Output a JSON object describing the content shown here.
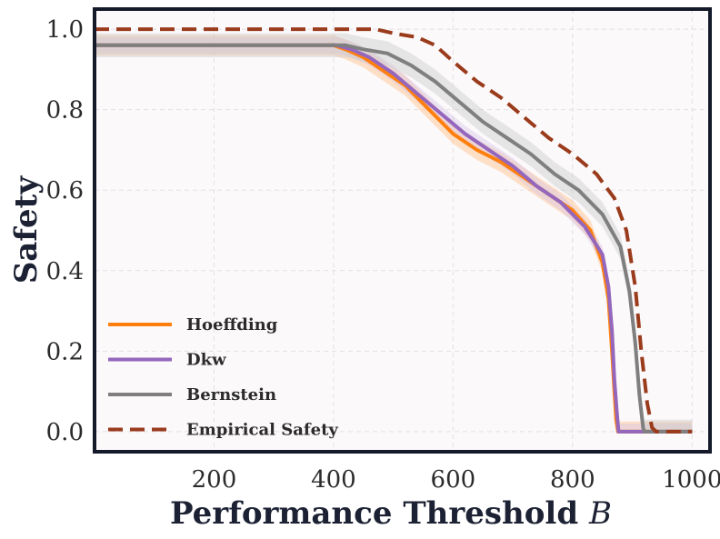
{
  "chart_data": {
    "type": "line",
    "title": "",
    "xlabel": "Performance Threshold",
    "xlabel_var": "B",
    "ylabel": "Safety",
    "xlim": [
      0,
      1030
    ],
    "ylim": [
      -0.05,
      1.05
    ],
    "x_ticks": [
      200,
      400,
      600,
      800,
      1000
    ],
    "x_tick_labels": [
      "200",
      "400",
      "600",
      "800",
      "1000"
    ],
    "y_ticks": [
      0.0,
      0.2,
      0.4,
      0.6,
      0.8,
      1.0
    ],
    "y_tick_labels": [
      "0.0",
      "0.2",
      "0.4",
      "0.6",
      "0.8",
      "1.0"
    ],
    "grid": true,
    "legend_position": "lower-left",
    "series": [
      {
        "name": "Hoeffding",
        "color": "#ff7f0e",
        "style": "solid",
        "band_color": "#ffbf86",
        "x": [
          0,
          400,
          420,
          450,
          480,
          520,
          560,
          600,
          640,
          680,
          720,
          760,
          800,
          830,
          850,
          860,
          866,
          870,
          873,
          876,
          880,
          1000
        ],
        "y": [
          0.96,
          0.96,
          0.95,
          0.93,
          0.9,
          0.86,
          0.8,
          0.74,
          0.7,
          0.67,
          0.63,
          0.59,
          0.55,
          0.5,
          0.42,
          0.33,
          0.2,
          0.1,
          0.03,
          0.0,
          0.0,
          0.0
        ],
        "band": 0.025
      },
      {
        "name": "Dkw",
        "color": "#9467bd",
        "style": "solid",
        "band_color": "#d7c6e6",
        "x": [
          0,
          405,
          430,
          460,
          500,
          540,
          580,
          620,
          660,
          700,
          740,
          780,
          820,
          850,
          860,
          866,
          870,
          874,
          877,
          880,
          1000
        ],
        "y": [
          0.96,
          0.96,
          0.95,
          0.93,
          0.89,
          0.84,
          0.79,
          0.74,
          0.7,
          0.66,
          0.61,
          0.57,
          0.51,
          0.44,
          0.36,
          0.25,
          0.13,
          0.05,
          0.0,
          0.0,
          0.0
        ],
        "band": 0.02
      },
      {
        "name": "Bernstein",
        "color": "#7f7f7f",
        "style": "solid",
        "band_color": "#cccccc",
        "x": [
          0,
          420,
          450,
          490,
          530,
          570,
          610,
          650,
          690,
          730,
          770,
          810,
          850,
          880,
          895,
          905,
          912,
          918,
          920,
          1000
        ],
        "y": [
          0.96,
          0.96,
          0.95,
          0.94,
          0.91,
          0.87,
          0.82,
          0.77,
          0.73,
          0.69,
          0.64,
          0.6,
          0.54,
          0.46,
          0.35,
          0.22,
          0.09,
          0.01,
          0.0,
          0.0
        ],
        "band": 0.03
      },
      {
        "name": "Empirical Safety",
        "color": "#9a3b1c",
        "style": "dashed",
        "x": [
          0,
          470,
          500,
          540,
          570,
          600,
          640,
          680,
          720,
          760,
          800,
          840,
          870,
          890,
          905,
          915,
          925,
          933,
          940,
          1000
        ],
        "y": [
          1.0,
          1.0,
          0.99,
          0.98,
          0.96,
          0.92,
          0.87,
          0.83,
          0.78,
          0.73,
          0.69,
          0.64,
          0.58,
          0.5,
          0.36,
          0.2,
          0.07,
          0.01,
          0.0,
          0.0
        ]
      }
    ]
  }
}
